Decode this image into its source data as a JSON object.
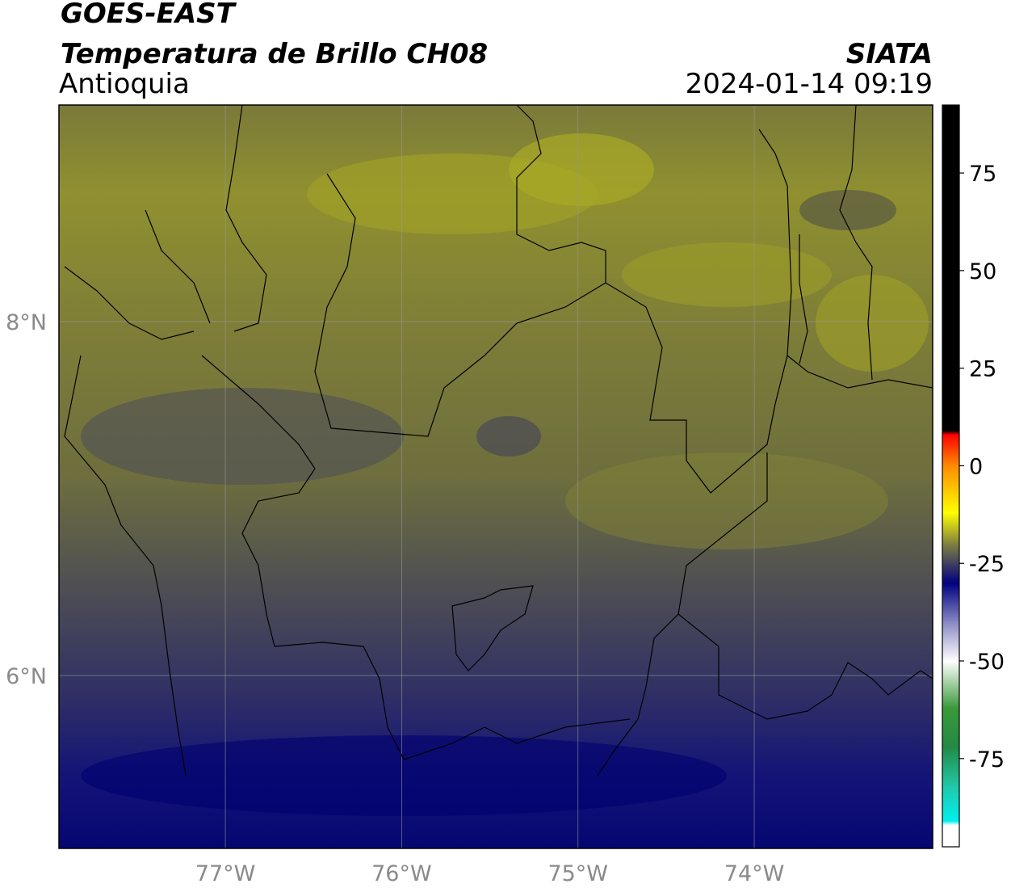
{
  "chart_data": {
    "type": "map",
    "title": "GOES-EAST",
    "subtitle": "Temperatura de Brillo CH08",
    "region": "Antioquia",
    "source": "SIATA",
    "datetime": "2024-01-14 09:19",
    "xlim": [
      -77.944,
      -72.988
    ],
    "ylim": [
      5.023,
      9.224
    ],
    "xticks": [
      {
        "value": -77,
        "label": "77°W"
      },
      {
        "value": -76,
        "label": "76°W"
      },
      {
        "value": -75,
        "label": "75°W"
      },
      {
        "value": -74,
        "label": "74°W"
      }
    ],
    "yticks": [
      {
        "value": 6,
        "label": "6°N"
      },
      {
        "value": 8,
        "label": "8°N"
      }
    ],
    "grid": true,
    "colorbar": {
      "lim": [
        -97.6,
        92.4
      ],
      "ticks": [
        75,
        50,
        25,
        0,
        -25,
        -50,
        -75
      ],
      "colormap": [
        {
          "value": 92.4,
          "color": "#000000"
        },
        {
          "value": 9,
          "color": "#000000"
        },
        {
          "value": 8,
          "color": "#ff0000"
        },
        {
          "value": 0,
          "color": "#ff8c00"
        },
        {
          "value": -12,
          "color": "#ffff00"
        },
        {
          "value": -20,
          "color": "#808040"
        },
        {
          "value": -25,
          "color": "#404060"
        },
        {
          "value": -30,
          "color": "#000080"
        },
        {
          "value": -40,
          "color": "#8888c4"
        },
        {
          "value": -50,
          "color": "#ffffff"
        },
        {
          "value": -62,
          "color": "#3a9a3a"
        },
        {
          "value": -72,
          "color": "#228a44"
        },
        {
          "value": -82,
          "color": "#20c8a8"
        },
        {
          "value": -91,
          "color": "#00f0f0"
        },
        {
          "value": -92,
          "color": "#ffffff"
        },
        {
          "value": -97.6,
          "color": "#ffffff"
        }
      ]
    }
  }
}
